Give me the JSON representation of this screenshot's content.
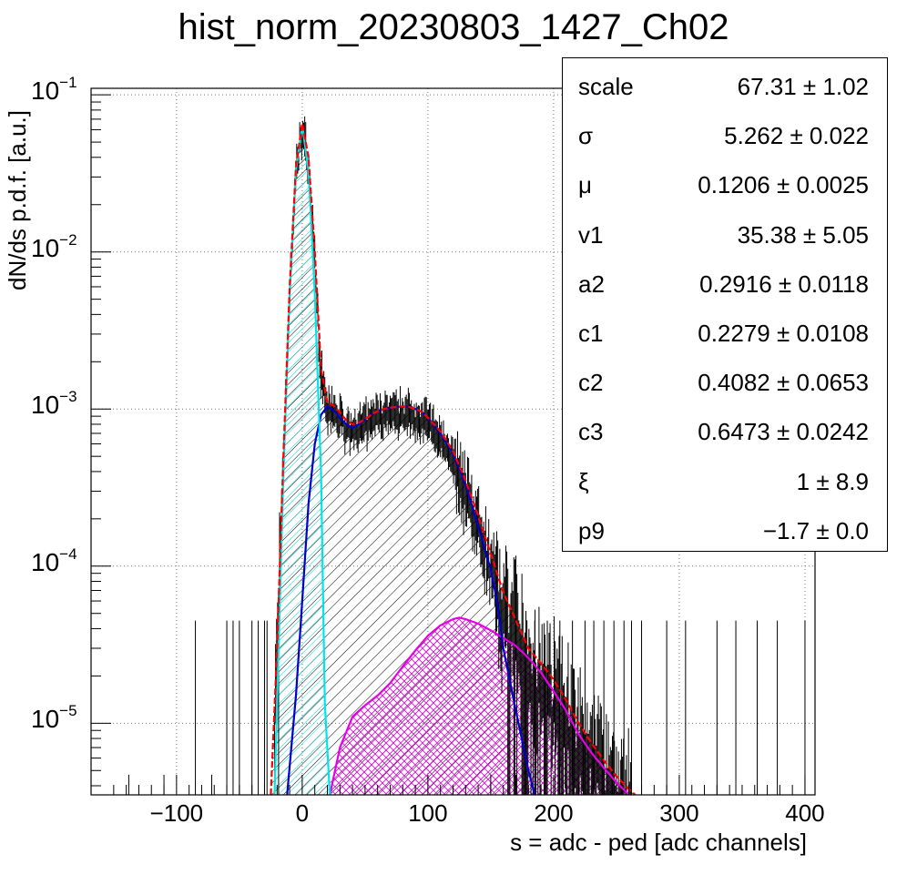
{
  "title": "hist_norm_20230803_1427_Ch02",
  "colors": {
    "data": "#000000",
    "total_fit": "#ff0000",
    "pedestal": "#00e6e6",
    "single_pe": "#0000cc",
    "second_component": "#e600e6"
  },
  "chart_data": {
    "type": "histogram",
    "title": "hist_norm_20230803_1427_Ch02",
    "xlabel": "s = adc - ped [adc channels]",
    "ylabel": "dN/ds p.d.f. [a.u.]",
    "xlim": [
      -168,
      408
    ],
    "ylim": [
      3.5e-06,
      0.11
    ],
    "yscale": "log",
    "grid": true,
    "x_ticks": [
      "−100",
      "0",
      "100",
      "200",
      "300",
      "400"
    ],
    "x_tick_values": [
      -100,
      0,
      100,
      200,
      300,
      400
    ],
    "y_ticks": [
      {
        "base": "10",
        "exp": "−1",
        "value": 0.1
      },
      {
        "base": "10",
        "exp": "−2",
        "value": 0.01
      },
      {
        "base": "10",
        "exp": "−3",
        "value": 0.001
      },
      {
        "base": "10",
        "exp": "−4",
        "value": 0.0001
      },
      {
        "base": "10",
        "exp": "−5",
        "value": 1e-05
      }
    ],
    "series": [
      {
        "role": "total_fit",
        "x": [
          -25,
          -20,
          -15,
          -10,
          -5,
          0,
          5,
          10,
          15,
          20,
          25,
          30,
          35,
          40,
          45,
          50,
          55,
          60,
          65,
          70,
          75,
          80,
          85,
          90,
          95,
          100,
          110,
          120,
          130,
          140,
          150,
          160,
          170,
          180,
          190,
          200,
          210,
          220,
          230,
          240,
          250,
          260,
          265
        ],
        "y": [
          3.5e-06,
          3e-05,
          0.0005,
          0.006,
          0.035,
          0.066,
          0.04,
          0.01,
          0.0018,
          0.0011,
          0.00105,
          0.00095,
          0.00085,
          0.0008,
          0.00082,
          0.00086,
          0.00092,
          0.00097,
          0.001,
          0.00102,
          0.00103,
          0.00104,
          0.00103,
          0.001,
          0.00096,
          0.00088,
          0.00072,
          0.00054,
          0.00035,
          0.00021,
          0.00012,
          6.8e-05,
          4.5e-05,
          3e-05,
          2.4e-05,
          1.9e-05,
          1.4e-05,
          1e-05,
          7.5e-06,
          5.8e-06,
          4.6e-06,
          3.8e-06,
          3.5e-06
        ]
      },
      {
        "role": "pedestal",
        "x": [
          -22,
          -20,
          -15,
          -10,
          -5,
          0,
          5,
          10,
          15,
          18,
          22
        ],
        "y": [
          3.5e-06,
          1.35e-05,
          0.00038,
          0.0054,
          0.033,
          0.064,
          0.033,
          0.0054,
          0.00038,
          1.35e-05,
          3.5e-06
        ]
      },
      {
        "role": "single_pe",
        "x": [
          -12,
          -5,
          0,
          5,
          10,
          15,
          20,
          25,
          30,
          35,
          40,
          45,
          50,
          55,
          60,
          65,
          70,
          75,
          80,
          85,
          90,
          95,
          100,
          110,
          120,
          130,
          140,
          150,
          155,
          160,
          170,
          180,
          185
        ],
        "y": [
          3.5e-06,
          1.5e-05,
          6e-05,
          0.00025,
          0.0006,
          0.00092,
          0.00104,
          0.00098,
          0.00088,
          0.0008,
          0.00076,
          0.0008,
          0.00086,
          0.00092,
          0.00097,
          0.001,
          0.00102,
          0.00103,
          0.00104,
          0.00103,
          0.001,
          0.00096,
          0.00088,
          0.0007,
          0.00052,
          0.00033,
          0.00018,
          9.5e-05,
          6e-05,
          3e-05,
          1.2e-05,
          5e-06,
          3.5e-06
        ]
      },
      {
        "role": "second_component",
        "x": [
          22,
          30,
          40,
          50,
          60,
          70,
          80,
          90,
          100,
          110,
          120,
          125,
          130,
          140,
          150,
          160,
          170,
          180,
          190,
          200,
          210,
          220,
          230,
          240,
          250,
          260
        ],
        "y": [
          3.5e-06,
          7e-06,
          1.1e-05,
          1.3e-05,
          1.5e-05,
          1.8e-05,
          2.3e-05,
          2.9e-05,
          3.6e-05,
          4.2e-05,
          4.6e-05,
          4.7e-05,
          4.6e-05,
          4.3e-05,
          3.9e-05,
          3.5e-05,
          3.1e-05,
          2.6e-05,
          2.1e-05,
          1.6e-05,
          1.2e-05,
          8.5e-06,
          6.5e-06,
          5.2e-06,
          4.2e-06,
          3.5e-06
        ]
      }
    ],
    "stats": [
      {
        "name": "scale",
        "value": "67.31",
        "error": "1.02"
      },
      {
        "name": "σ",
        "value": "5.262",
        "error": "0.022"
      },
      {
        "name": "μ",
        "value": "0.1206",
        "error": "0.0025"
      },
      {
        "name": "v1",
        "value": "35.38",
        "error": "5.05"
      },
      {
        "name": "a2",
        "value": "0.2916",
        "error": "0.0118"
      },
      {
        "name": "c1",
        "value": "0.2279",
        "error": "0.0108"
      },
      {
        "name": "c2",
        "value": "0.4082",
        "error": "0.0653"
      },
      {
        "name": "c3",
        "value": "0.6473",
        "error": "0.0242"
      },
      {
        "name": "ξ",
        "value": "1",
        "error": "8.9"
      },
      {
        "name": "p9",
        "value": "−1.7",
        "error": "0.0"
      }
    ]
  }
}
